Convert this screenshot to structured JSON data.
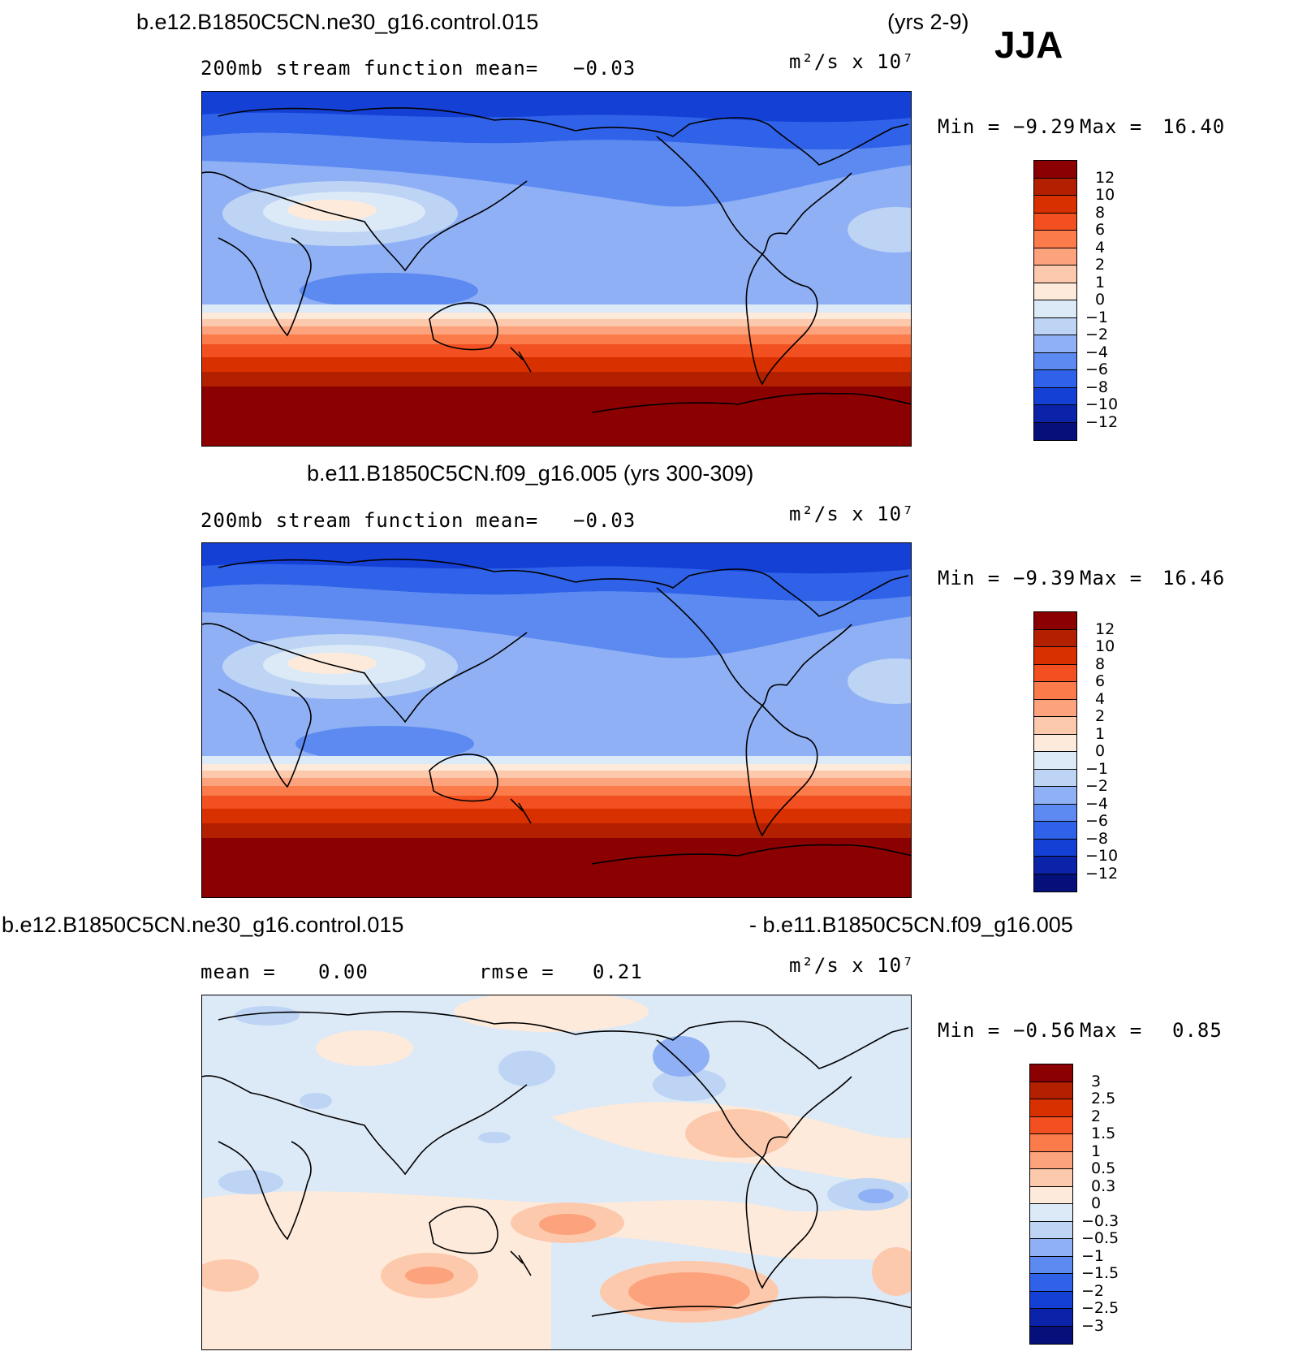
{
  "season": "JJA",
  "panels": [
    {
      "title_left": "b.e12.B1850C5CN.ne30_g16.control.015",
      "title_right": "(yrs 2-9)",
      "subtitle_left": "200mb stream function",
      "mean_label": "mean=",
      "mean_value": "−0.03",
      "units": "m²/s x 10⁷",
      "min_label": "Min =",
      "min_value": "−9.29",
      "max_label": "Max =",
      "max_value": "16.40",
      "colorbar": [
        "12",
        "10",
        "8",
        "6",
        "4",
        "2",
        "1",
        "0",
        "−1",
        "−2",
        "−4",
        "−6",
        "−8",
        "−10",
        "−12"
      ]
    },
    {
      "title_center": "b.e11.B1850C5CN.f09_g16.005 (yrs 300-309)",
      "subtitle_left": "200mb stream function",
      "mean_label": "mean=",
      "mean_value": "−0.03",
      "units": "m²/s x 10⁷",
      "min_label": "Min =",
      "min_value": "−9.39",
      "max_label": "Max =",
      "max_value": "16.46",
      "colorbar": [
        "12",
        "10",
        "8",
        "6",
        "4",
        "2",
        "1",
        "0",
        "−1",
        "−2",
        "−4",
        "−6",
        "−8",
        "−10",
        "−12"
      ]
    },
    {
      "title_left": "b.e12.B1850C5CN.ne30_g16.control.015",
      "title_right": "- b.e11.B1850C5CN.f09_g16.005",
      "mean_label": "mean =",
      "mean_value": "0.00",
      "rmse_label": "rmse =",
      "rmse_value": "0.21",
      "units": "m²/s x 10⁷",
      "min_label": "Min =",
      "min_value": "−0.56",
      "max_label": "Max =",
      "max_value": "0.85",
      "colorbar": [
        "3",
        "2.5",
        "2",
        "1.5",
        "1",
        "0.5",
        "0.3",
        "0",
        "−0.3",
        "−0.5",
        "−1",
        "−1.5",
        "−2",
        "−2.5",
        "−3"
      ]
    }
  ],
  "colors": {
    "scale": [
      "#8b0000",
      "#b22000",
      "#d93000",
      "#f25020",
      "#fc7b4a",
      "#fca27c",
      "#fdc9ad",
      "#fdeadb",
      "#dce9f7",
      "#bdd4f5",
      "#8fb0f5",
      "#5c8af0",
      "#2f62e8",
      "#1440d6",
      "#0a23a8",
      "#05107a"
    ],
    "coast": "#000000"
  }
}
